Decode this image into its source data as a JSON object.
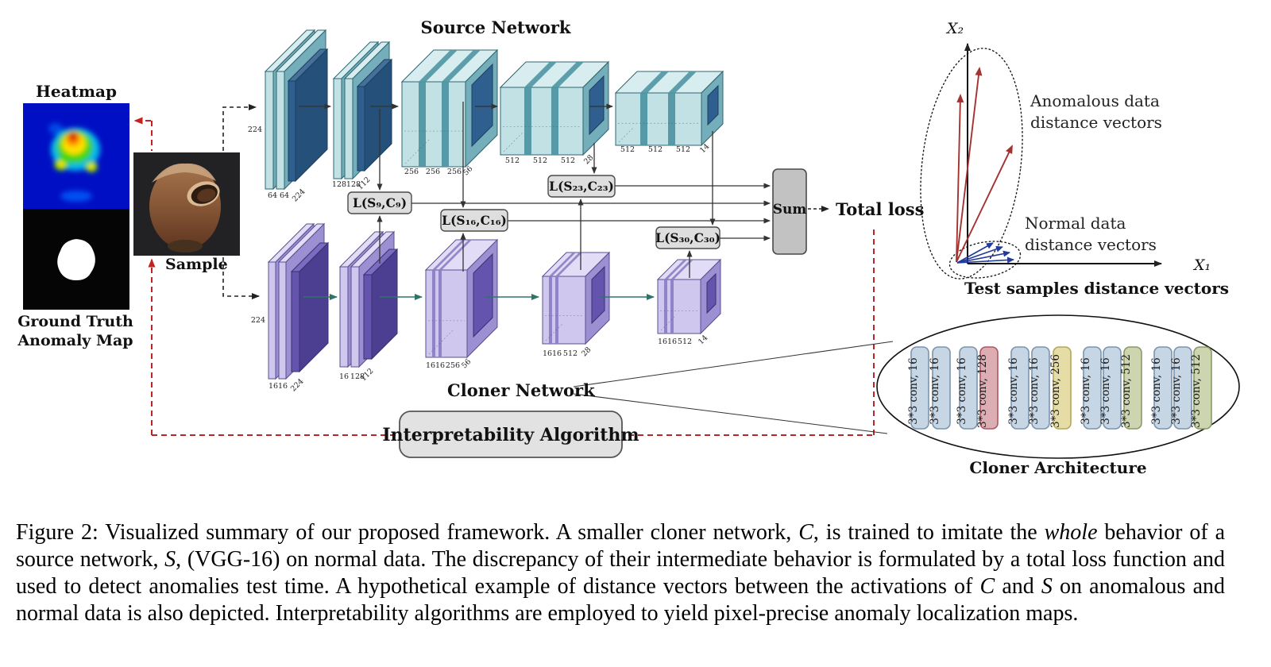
{
  "figure": {
    "left_panel": {
      "heatmap_label": "Heatmap",
      "ground_truth_line1": "Ground Truth",
      "ground_truth_line2": "Anomaly Map",
      "sample_label": "Sample"
    },
    "source_network": {
      "title": "Source Network",
      "input_dim": "224",
      "blocks": [
        {
          "ch0": "64",
          "ch1": "64",
          "dim": "224"
        },
        {
          "ch0": "128",
          "ch1": "128",
          "dim": "112"
        },
        {
          "ch0": "256",
          "ch1": "256",
          "ch2": "256",
          "dim": "56"
        },
        {
          "ch0": "512",
          "ch1": "512",
          "ch2": "512",
          "dim": "28"
        },
        {
          "ch0": "512",
          "ch1": "512",
          "ch2": "512",
          "dim": "14"
        }
      ]
    },
    "cloner_network": {
      "title": "Cloner Network",
      "input_dim": "224",
      "blocks": [
        {
          "ch0": "16",
          "ch1": "16",
          "dim": "224"
        },
        {
          "ch0": "16",
          "ch1": "128",
          "dim": "112"
        },
        {
          "ch0": "16",
          "ch1": "16",
          "ch2": "256",
          "dim": "56"
        },
        {
          "ch0": "16",
          "ch1": "16",
          "ch2": "512",
          "dim": "28"
        },
        {
          "ch0": "16",
          "ch1": "16",
          "ch2": "512",
          "dim": "14"
        }
      ]
    },
    "losses": {
      "l9": "L(S₉,C₉)",
      "l16": "L(S₁₆,C₁₆)",
      "l23": "L(S₂₃,C₂₃)",
      "l30": "L(S₃₀,C₃₀)"
    },
    "sum_label": "Sum",
    "total_loss_label": "Total loss",
    "interpretability_label": "Interpretability Algorithm",
    "vector_plot": {
      "x1_label": "X₁",
      "x2_label": "X₂",
      "anomalous_line1": "Anomalous data",
      "anomalous_line2": "distance vectors",
      "normal_line1": "Normal data",
      "normal_line2": "distance vectors",
      "test_label": "Test samples distance vectors",
      "anomalous_color": "#a33330",
      "normal_color": "#223a99"
    },
    "cloner_architecture": {
      "label": "Cloner Architecture",
      "layers": [
        {
          "label": "3*3 conv, 16",
          "type": "blue"
        },
        {
          "label": "3*3 conv, 16",
          "type": "blue"
        },
        {
          "label": "3*3 conv, 16",
          "type": "blue"
        },
        {
          "label": "3*3 conv, 128",
          "type": "red"
        },
        {
          "label": "3*3 conv, 16",
          "type": "blue"
        },
        {
          "label": "3*3 conv, 16",
          "type": "blue"
        },
        {
          "label": "3*3 conv, 256",
          "type": "yellow"
        },
        {
          "label": "3*3 conv, 16",
          "type": "blue"
        },
        {
          "label": "3*3 conv, 16",
          "type": "blue"
        },
        {
          "label": "3*3 conv, 512",
          "type": "green"
        },
        {
          "label": "3*3 conv, 16",
          "type": "blue"
        },
        {
          "label": "3*3 conv, 16",
          "type": "blue"
        },
        {
          "label": "3*3 conv, 512",
          "type": "green"
        }
      ]
    },
    "colors": {
      "source_face": "#c2e1e5",
      "source_dark_plate": "#2e5f8e",
      "cloner_face": "#cfc7ee",
      "cloner_dark_plate": "#6454ae",
      "loss_box_fill": "#dedede",
      "red_dashed": "#c32222",
      "cloner_arrow": "#2f7468"
    }
  },
  "caption": {
    "segments": [
      {
        "t": "Figure 2:  Visualized summary of our proposed framework.  A smaller cloner network, "
      },
      {
        "t": "C",
        "italic": true
      },
      {
        "t": ", is trained to imitate the "
      },
      {
        "t": "whole",
        "italic": true
      },
      {
        "t": " behavior of a source network, "
      },
      {
        "t": "S",
        "italic": true
      },
      {
        "t": ", (VGG-16) on normal data.  The discrepancy of their intermediate behavior is formulated by a total loss function and used to detect anomalies test time.  A hypothetical example of distance vectors between the activations of "
      },
      {
        "t": "C",
        "italic": true
      },
      {
        "t": " and "
      },
      {
        "t": "S",
        "italic": true
      },
      {
        "t": " on anomalous and normal data is also depicted.  Interpretability algorithms are employed to yield pixel-precise anomaly localization maps."
      }
    ]
  }
}
